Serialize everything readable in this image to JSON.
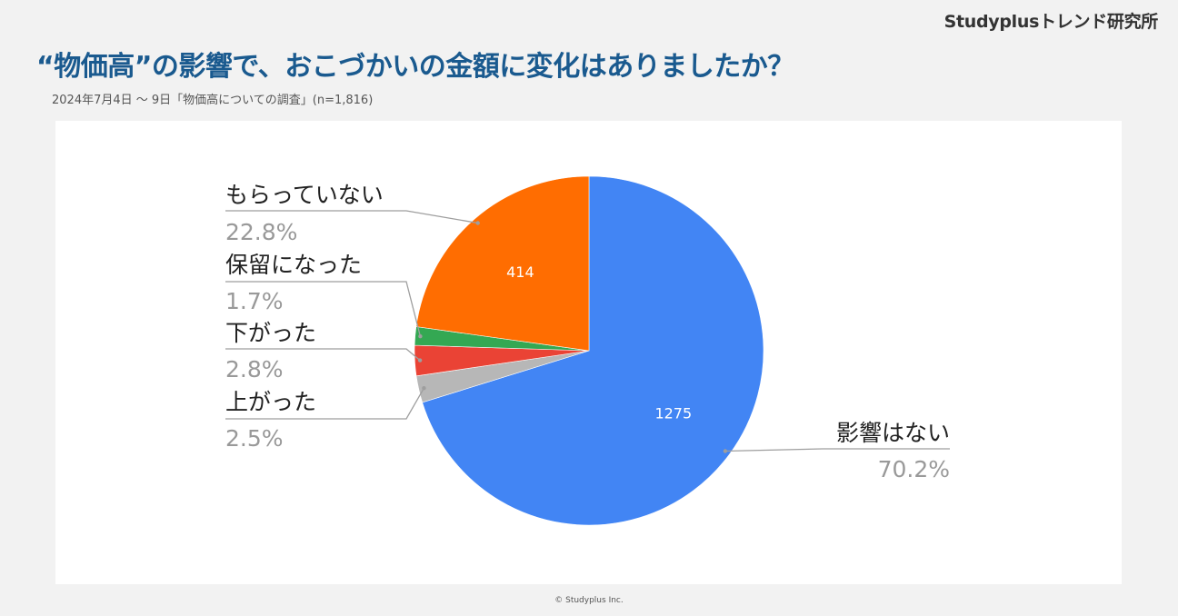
{
  "header": {
    "brand": "Studyplusトレンド研究所",
    "title": "“物価高”の影響で、おこづかいの金額に変化はありましたか？",
    "subtitle": "2024年7月4日 〜 9日「物価高についての調査」(n=1,816)"
  },
  "footer": {
    "copyright": "© Studyplus Inc."
  },
  "chart_data": {
    "type": "pie",
    "slices": [
      {
        "label": "影響はない",
        "value": 1275,
        "percent": "70.2%",
        "color": "#4285f4",
        "show_value": true
      },
      {
        "label": "上がった",
        "value": 45,
        "percent": "2.5%",
        "color": "#b7b7b7",
        "show_value": false
      },
      {
        "label": "下がった",
        "value": 51,
        "percent": "2.8%",
        "color": "#ea4335",
        "show_value": false
      },
      {
        "label": "保留になった",
        "value": 31,
        "percent": "1.7%",
        "color": "#34a853",
        "show_value": false
      },
      {
        "label": "もらっていない",
        "value": 414,
        "percent": "22.8%",
        "color": "#ff6d01",
        "show_value": true
      }
    ]
  }
}
